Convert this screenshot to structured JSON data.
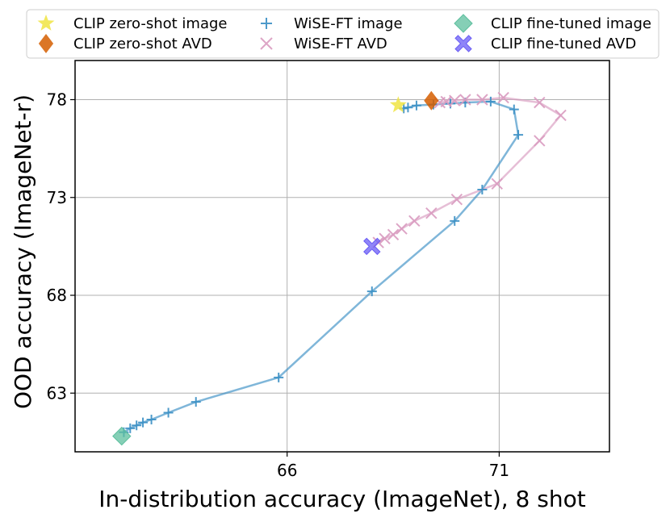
{
  "chart_data": {
    "type": "scatter",
    "xlabel": "In-distribution accuracy (ImageNet), 8 shot",
    "ylabel": "OOD accuracy (ImageNet-r)",
    "xlim": [
      61.0,
      73.6
    ],
    "ylim": [
      60.0,
      80.0
    ],
    "xticks": [
      66,
      71
    ],
    "yticks": [
      63,
      68,
      73,
      78
    ],
    "grid": true,
    "legend_position": "top",
    "colors": {
      "zeroshot_image": "#f0e442",
      "zeroshot_avd": "#d55e00",
      "wiseft_image": "#3a8fc4",
      "wiseft_avd": "#d99bc0",
      "finetuned_image": "#5cbf9e",
      "finetuned_avd": "#6a5cf5"
    },
    "legend": [
      {
        "label": "CLIP zero-shot image",
        "marker": "star",
        "color": "#f0e442"
      },
      {
        "label": "CLIP zero-shot AVD",
        "marker": "diamond",
        "color": "#d55e00"
      },
      {
        "label": "WiSE-FT image",
        "marker": "plus",
        "color": "#3a8fc4"
      },
      {
        "label": "WiSE-FT AVD",
        "marker": "x",
        "color": "#d99bc0"
      },
      {
        "label": "CLIP fine-tuned image",
        "marker": "diamond",
        "color": "#5cbf9e"
      },
      {
        "label": "CLIP fine-tuned AVD",
        "marker": "xfill",
        "color": "#6a5cf5"
      }
    ],
    "series": [
      {
        "name": "WiSE-FT image",
        "marker": "plus",
        "color": "#3a8fc4",
        "line": true,
        "points": [
          [
            62.15,
            61.0
          ],
          [
            62.3,
            61.2
          ],
          [
            62.45,
            61.35
          ],
          [
            62.6,
            61.5
          ],
          [
            62.8,
            61.65
          ],
          [
            63.2,
            62.0
          ],
          [
            63.85,
            62.55
          ],
          [
            65.8,
            63.8
          ],
          [
            68.0,
            68.2
          ],
          [
            69.95,
            71.8
          ],
          [
            70.6,
            73.4
          ],
          [
            71.45,
            76.2
          ],
          [
            71.35,
            77.5
          ],
          [
            70.8,
            77.9
          ],
          [
            70.2,
            77.85
          ],
          [
            69.85,
            77.8
          ],
          [
            69.45,
            77.75
          ],
          [
            69.05,
            77.7
          ],
          [
            68.85,
            77.6
          ],
          [
            68.75,
            77.55
          ]
        ]
      },
      {
        "name": "WiSE-FT AVD",
        "marker": "x",
        "color": "#d99bc0",
        "line": true,
        "points": [
          [
            68.15,
            70.7
          ],
          [
            68.3,
            70.9
          ],
          [
            68.5,
            71.1
          ],
          [
            68.7,
            71.4
          ],
          [
            69.0,
            71.8
          ],
          [
            69.4,
            72.2
          ],
          [
            70.0,
            72.9
          ],
          [
            70.95,
            73.7
          ],
          [
            71.95,
            75.9
          ],
          [
            72.45,
            77.2
          ],
          [
            71.95,
            77.85
          ],
          [
            71.1,
            78.1
          ],
          [
            70.6,
            78.0
          ],
          [
            70.2,
            78.0
          ],
          [
            69.95,
            77.95
          ],
          [
            69.75,
            77.9
          ],
          [
            69.6,
            77.85
          ]
        ]
      },
      {
        "name": "CLIP zero-shot image",
        "marker": "star",
        "color": "#f0e442",
        "line": false,
        "points": [
          [
            68.62,
            77.72
          ]
        ]
      },
      {
        "name": "CLIP zero-shot AVD",
        "marker": "diamond",
        "color": "#d55e00",
        "line": false,
        "points": [
          [
            69.4,
            77.95
          ]
        ]
      },
      {
        "name": "CLIP fine-tuned image",
        "marker": "diamond",
        "color": "#5cbf9e",
        "line": false,
        "points": [
          [
            62.1,
            60.8
          ]
        ]
      },
      {
        "name": "CLIP fine-tuned AVD",
        "marker": "xfill",
        "color": "#6a5cf5",
        "line": false,
        "points": [
          [
            68.0,
            70.5
          ]
        ]
      }
    ]
  }
}
